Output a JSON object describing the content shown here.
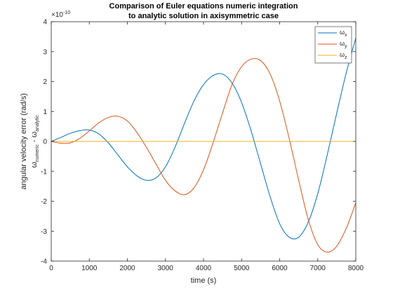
{
  "chart_data": {
    "type": "line",
    "title": "Comparison of Euler equations numeric integration",
    "subtitle": "to analytic solution in axisymmetric case",
    "xlabel": "time (s)",
    "ylabel_prefix": "angular velocity error (rad/s)",
    "ylabel_sub1": "numeric",
    "ylabel_minus": " - ",
    "ylabel_sub2": "analytic",
    "ylabel_omega": "ω",
    "exponent_label_base": "×10",
    "exponent_label_power": "-10",
    "xlim": [
      0,
      8000
    ],
    "ylim": [
      -4,
      4
    ],
    "xticks": [
      0,
      1000,
      2000,
      3000,
      4000,
      5000,
      6000,
      7000,
      8000
    ],
    "yticks": [
      -4,
      -3,
      -2,
      -1,
      0,
      1,
      2,
      3,
      4
    ],
    "legend_position": "top-right",
    "grid": false,
    "series": [
      {
        "name": "ω",
        "subscript": "x",
        "color": "#0072BD",
        "x": [
          0,
          250,
          500,
          750,
          1000,
          1250,
          1500,
          1750,
          2000,
          2250,
          2500,
          2750,
          3000,
          3250,
          3500,
          3750,
          4000,
          4250,
          4500,
          4750,
          5000,
          5250,
          5500,
          5750,
          6000,
          6250,
          6500,
          6750,
          7000,
          7250,
          7500,
          7750,
          8000
        ],
        "values": [
          0,
          0.13,
          0.27,
          0.36,
          0.38,
          0.25,
          -0.05,
          -0.45,
          -0.85,
          -1.15,
          -1.3,
          -1.22,
          -0.85,
          -0.2,
          0.6,
          1.35,
          1.9,
          2.2,
          2.25,
          1.95,
          1.3,
          0.35,
          -0.75,
          -1.85,
          -2.75,
          -3.2,
          -3.2,
          -2.7,
          -1.75,
          -0.45,
          0.95,
          2.3,
          3.45
        ]
      },
      {
        "name": "ω",
        "subscript": "y",
        "color": "#D95319",
        "x": [
          0,
          250,
          500,
          750,
          1000,
          1250,
          1500,
          1750,
          2000,
          2250,
          2500,
          2750,
          3000,
          3250,
          3500,
          3750,
          4000,
          4250,
          4500,
          4750,
          5000,
          5250,
          5500,
          5750,
          6000,
          6250,
          6500,
          6750,
          7000,
          7250,
          7500,
          7750,
          8000
        ],
        "values": [
          0,
          -0.06,
          -0.05,
          0.1,
          0.35,
          0.62,
          0.8,
          0.84,
          0.68,
          0.3,
          -0.2,
          -0.75,
          -1.3,
          -1.65,
          -1.78,
          -1.55,
          -0.95,
          -0.05,
          0.95,
          1.9,
          2.5,
          2.75,
          2.7,
          2.25,
          1.35,
          0.1,
          -1.3,
          -2.6,
          -3.45,
          -3.7,
          -3.5,
          -2.9,
          -2.05
        ]
      },
      {
        "name": "ω",
        "subscript": "z",
        "color": "#EDB120",
        "x": [
          0,
          8000
        ],
        "values": [
          0,
          0
        ]
      }
    ]
  }
}
